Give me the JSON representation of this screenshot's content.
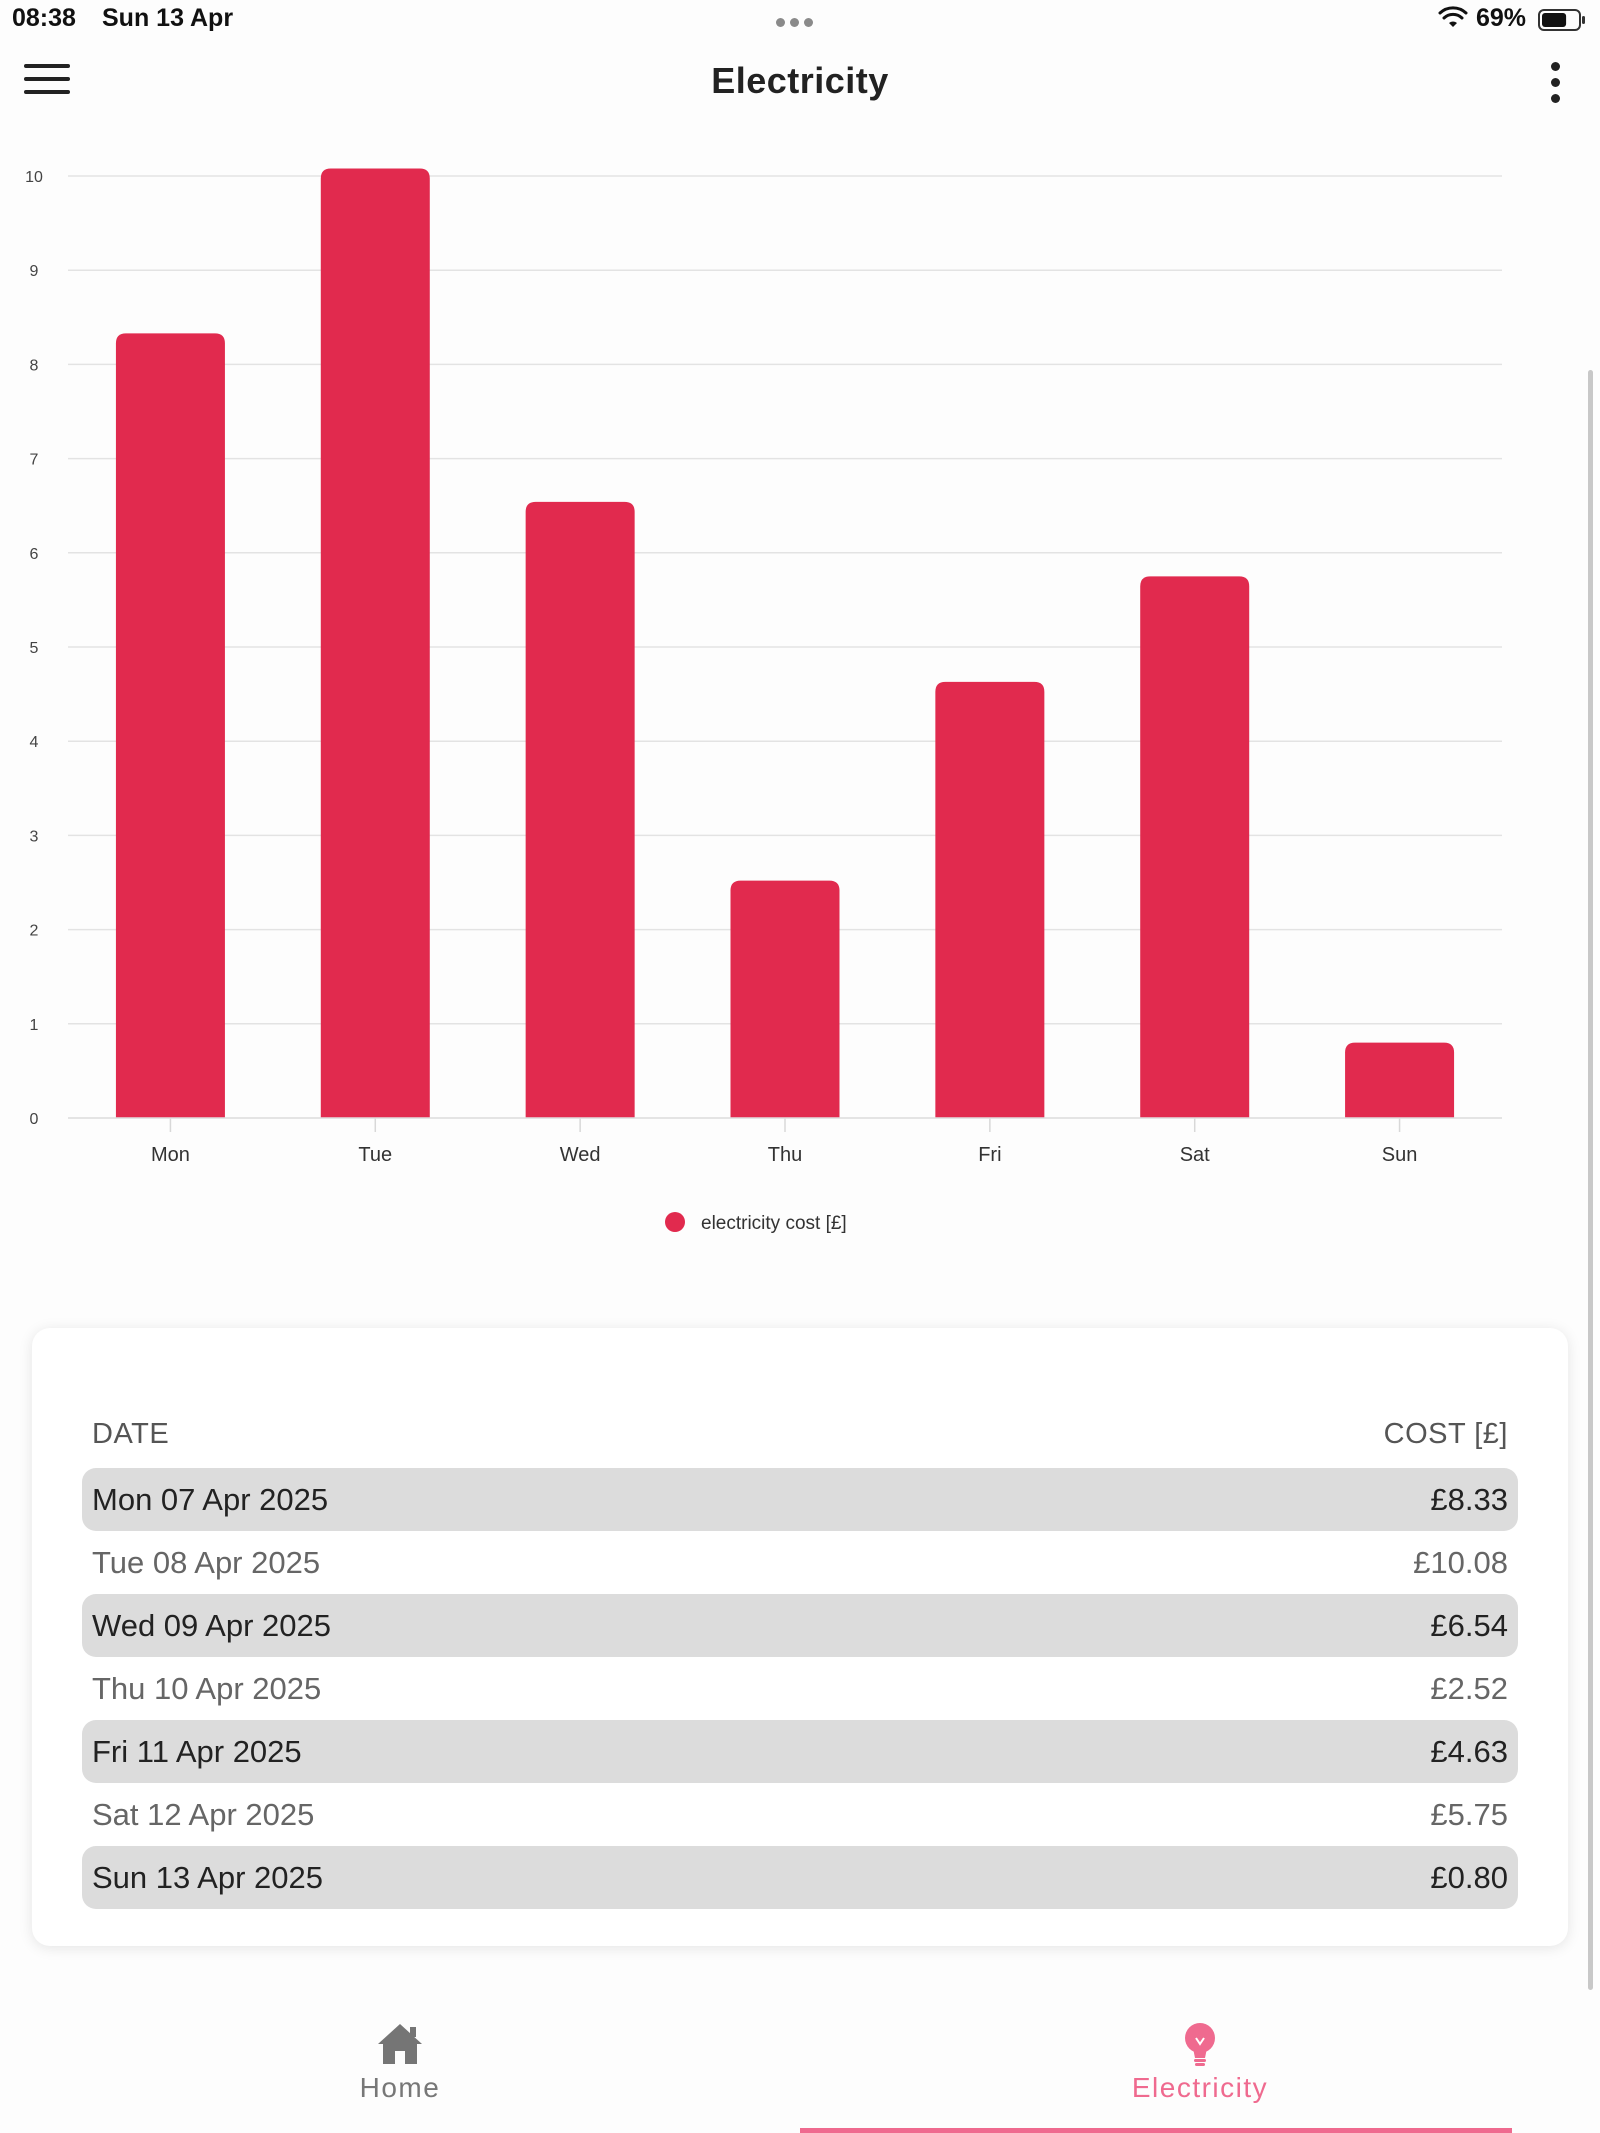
{
  "status_bar": {
    "time": "08:38",
    "date": "Sun 13 Apr",
    "battery_percent": "69%",
    "battery_level": 0.69
  },
  "header": {
    "title": "Electricity",
    "menu_icon": "hamburger-menu-icon",
    "more_icon": "more-vertical-icon"
  },
  "chart_data": {
    "type": "bar",
    "categories": [
      "Mon",
      "Tue",
      "Wed",
      "Thu",
      "Fri",
      "Sat",
      "Sun"
    ],
    "series": [
      {
        "name": "electricity cost [£]",
        "values": [
          8.33,
          10.08,
          6.54,
          2.52,
          4.63,
          5.75,
          0.8
        ],
        "color": "#e12a4e"
      }
    ],
    "ylim": [
      0,
      10
    ],
    "yticks": [
      "0",
      "1",
      "2",
      "3",
      "4",
      "5",
      "6",
      "7",
      "8",
      "9",
      "10"
    ],
    "grid": true,
    "legend": "bottom-center"
  },
  "table": {
    "header_date": "DATE",
    "header_cost": "COST [£]",
    "rows": [
      {
        "date": "Mon 07 Apr 2025",
        "cost": "£8.33"
      },
      {
        "date": "Tue 08 Apr 2025",
        "cost": "£10.08"
      },
      {
        "date": "Wed 09 Apr 2025",
        "cost": "£6.54"
      },
      {
        "date": "Thu 10 Apr 2025",
        "cost": "£2.52"
      },
      {
        "date": "Fri 11 Apr 2025",
        "cost": "£4.63"
      },
      {
        "date": "Sat 12 Apr 2025",
        "cost": "£5.75"
      },
      {
        "date": "Sun 13 Apr 2025",
        "cost": "£0.80"
      }
    ]
  },
  "bottom_nav": {
    "home": {
      "label": "Home",
      "icon": "home-icon"
    },
    "electricity": {
      "label": "Electricity",
      "icon": "lightbulb-icon",
      "active": true
    }
  },
  "colors": {
    "bar": "#e12a4e",
    "accent": "#ef6a8f",
    "row_highlight": "#dcdcdc"
  }
}
